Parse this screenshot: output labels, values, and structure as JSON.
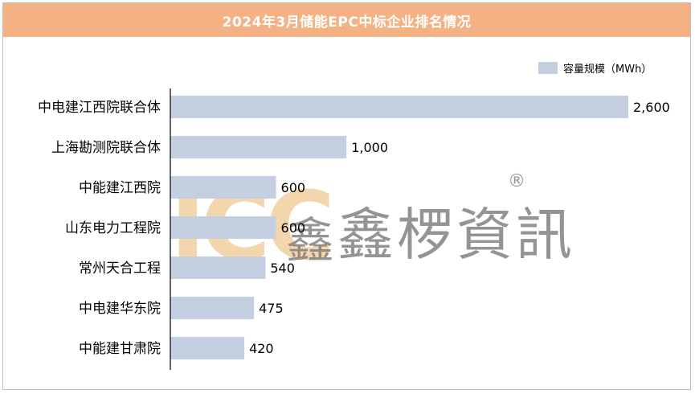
{
  "chart_data": {
    "type": "bar",
    "orientation": "horizontal",
    "title": "2024年3月储能EPC中标企业排名情况",
    "categories": [
      "中电建江西院联合体",
      "上海勘测院联合体",
      "中能建江西院",
      "山东电力工程院",
      "常州天合工程",
      "中电建华东院",
      "中能建甘肃院"
    ],
    "series": [
      {
        "name": "容量规模（MWh）",
        "values": [
          2600,
          1000,
          600,
          600,
          540,
          475,
          420
        ]
      }
    ],
    "value_labels": [
      "2,600",
      "1,000",
      "600",
      "600",
      "540",
      "475",
      "420"
    ],
    "xlim": [
      0,
      2600
    ],
    "grid": false,
    "legend_position": "top-right",
    "colors": {
      "bar": "#c5cfe2",
      "title_bg": "#f4b183",
      "axis": "#000000"
    }
  },
  "watermark": {
    "logo_text": "ICC",
    "logo_color": "#f2cf9e",
    "seal_text": "鑫",
    "brand_text": "鑫椤資訊",
    "registered_mark": "®"
  }
}
